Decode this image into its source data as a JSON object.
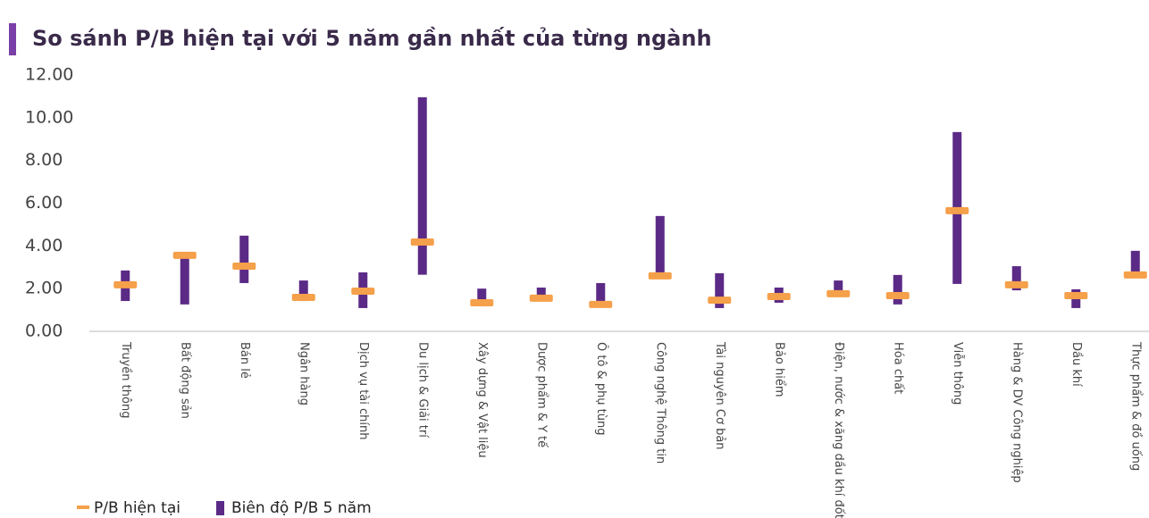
{
  "chart_data": {
    "type": "range",
    "title": "So sánh P/B hiện tại với 5 năm gần nhất của từng ngành",
    "categories": [
      "Truyền thông",
      "Bất động sản",
      "Bán lẻ",
      "Ngân hàng",
      "Dịch vụ tài chính",
      "Du lịch & Giải trí",
      "Xây dựng & Vật liệu",
      "Dược phẩm & Y tế",
      "Ô tô & phụ tùng",
      "Công nghệ Thông tin",
      "Tài nguyên Cơ bản",
      "Bảo hiểm",
      "Điện, nước & xăng dầu khí đốt",
      "Hóa chất",
      "Viễn thông",
      "Hàng & DV Công nghiệp",
      "Dầu khí",
      "Thực phẩm & đồ uống"
    ],
    "series": [
      {
        "name": "P/B hiện tại",
        "color": "#f5a04a",
        "values": [
          2.18,
          3.56,
          3.05,
          1.59,
          1.88,
          4.18,
          1.34,
          1.55,
          1.26,
          2.6,
          1.46,
          1.63,
          1.76,
          1.67,
          5.65,
          2.18,
          1.67,
          2.64
        ]
      },
      {
        "name": "Biên độ P/B 5 năm",
        "color": "#5b2a86",
        "low": [
          1.42,
          1.26,
          2.26,
          1.42,
          1.09,
          2.65,
          1.17,
          1.42,
          1.17,
          2.55,
          1.09,
          1.34,
          1.7,
          1.26,
          2.22,
          1.92,
          1.09,
          2.55
        ],
        "high": [
          2.85,
          3.6,
          4.48,
          2.38,
          2.76,
          10.96,
          2.0,
          2.05,
          2.26,
          5.4,
          2.72,
          2.05,
          2.38,
          2.64,
          9.33,
          3.05,
          1.97,
          3.77
        ]
      }
    ],
    "ylim": [
      0,
      12
    ],
    "yticks": [
      {
        "value": 0,
        "label": "0.00"
      },
      {
        "value": 2,
        "label": "2.00"
      },
      {
        "value": 4,
        "label": "4.00"
      },
      {
        "value": 6,
        "label": "6.00"
      },
      {
        "value": 8,
        "label": "8.00"
      },
      {
        "value": 10,
        "label": "10.00"
      },
      {
        "value": 12,
        "label": "12.00"
      }
    ]
  }
}
